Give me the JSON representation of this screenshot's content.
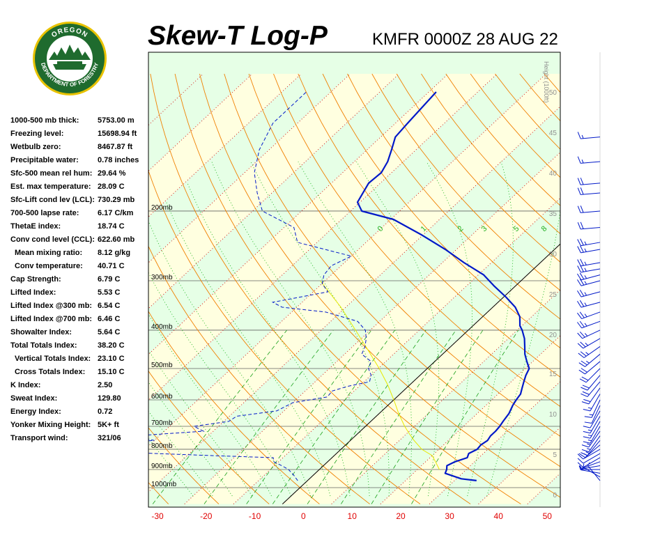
{
  "header": {
    "title": "Skew-T Log-P",
    "station_time": "KMFR 0000Z 28 AUG 22"
  },
  "logo": {
    "top_text": "OREGON",
    "bottom_text": "DEPARTMENT OF FORESTRY",
    "ring_color": "#1f6b2e",
    "rim_color": "#e8c200"
  },
  "indices": [
    {
      "label": "1000-500 mb thick:",
      "value": "5753.00 m",
      "indent": false
    },
    {
      "label": "Freezing level:",
      "value": "15698.94 ft",
      "indent": false
    },
    {
      "label": "Wetbulb zero:",
      "value": "8467.87 ft",
      "indent": false
    },
    {
      "label": "Precipitable water:",
      "value": "0.78 inches",
      "indent": false
    },
    {
      "label": "Sfc-500 mean rel hum:",
      "value": "29.64 %",
      "indent": false
    },
    {
      "label": "Est. max temperature:",
      "value": "28.09 C",
      "indent": false
    },
    {
      "label": "Sfc-Lift cond lev (LCL):",
      "value": "730.29 mb",
      "indent": false
    },
    {
      "label": "700-500 lapse rate:",
      "value": "6.17 C/km",
      "indent": false
    },
    {
      "label": "ThetaE index:",
      "value": "18.74 C",
      "indent": false
    },
    {
      "label": "Conv cond level (CCL):",
      "value": "622.60 mb",
      "indent": false
    },
    {
      "label": "Mean mixing ratio:",
      "value": "8.12 g/kg",
      "indent": true
    },
    {
      "label": "Conv temperature:",
      "value": "40.71 C",
      "indent": true
    },
    {
      "label": "Cap Strength:",
      "value": "6.79 C",
      "indent": false
    },
    {
      "label": "Lifted Index:",
      "value": "5.53 C",
      "indent": false
    },
    {
      "label": "Lifted Index @300 mb:",
      "value": "6.54 C",
      "indent": false
    },
    {
      "label": "Lifted Index @700 mb:",
      "value": "6.46 C",
      "indent": false
    },
    {
      "label": "Showalter Index:",
      "value": "5.64 C",
      "indent": false
    },
    {
      "label": "Total Totals Index:",
      "value": "38.20 C",
      "indent": false
    },
    {
      "label": "Vertical Totals Index:",
      "value": "23.10 C",
      "indent": true
    },
    {
      "label": "Cross Totals Index:",
      "value": "15.10 C",
      "indent": true
    },
    {
      "label": "K Index:",
      "value": "2.50",
      "indent": false
    },
    {
      "label": "Sweat Index:",
      "value": "129.80",
      "indent": false
    },
    {
      "label": "Energy Index:",
      "value": "0.72",
      "indent": false
    },
    {
      "label": "Yonker Mixing Height:",
      "value": "5K+ ft",
      "indent": false
    },
    {
      "label": "Transport wind:",
      "value": "321/06",
      "indent": false
    }
  ],
  "chart_data": {
    "type": "line",
    "subtype": "skew-t log-p",
    "x_tick_labels": [
      "-30",
      "-20",
      "-10",
      "0",
      "10",
      "20",
      "30",
      "40",
      "50"
    ],
    "pressure_labels": [
      "200mb",
      "300mb",
      "400mb",
      "500mb",
      "600mb",
      "700mb",
      "800mb",
      "900mb",
      "1000mb"
    ],
    "height_axis_label": "Height (1000ft)",
    "height_tick_labels": [
      "0",
      "5",
      "10",
      "15",
      "20",
      "25",
      "30",
      "35",
      "40",
      "45",
      "50"
    ],
    "mixing_ratio_labels": [
      "0",
      "1",
      "2",
      "3",
      "5",
      "8"
    ],
    "temperature_profile": {
      "color": "#0018c8",
      "points": [
        [
          960,
          34.5
        ],
        [
          950,
          31.0
        ],
        [
          920,
          26.5
        ],
        [
          900,
          26.0
        ],
        [
          880,
          25.2
        ],
        [
          860,
          26.0
        ],
        [
          840,
          27.6
        ],
        [
          820,
          27.0
        ],
        [
          800,
          27.8
        ],
        [
          780,
          27.6
        ],
        [
          760,
          28.0
        ],
        [
          740,
          27.6
        ],
        [
          720,
          27.6
        ],
        [
          700,
          27.4
        ],
        [
          680,
          27.0
        ],
        [
          650,
          26.5
        ],
        [
          620,
          25.5
        ],
        [
          600,
          25.0
        ],
        [
          580,
          24.6
        ],
        [
          560,
          23.6
        ],
        [
          540,
          22.6
        ],
        [
          520,
          21.6
        ],
        [
          500,
          20.8
        ],
        [
          480,
          18.8
        ],
        [
          460,
          16.8
        ],
        [
          440,
          15.1
        ],
        [
          420,
          13.3
        ],
        [
          400,
          11.0
        ],
        [
          390,
          9.6
        ],
        [
          370,
          7.6
        ],
        [
          350,
          4.6
        ],
        [
          330,
          0.5
        ],
        [
          310,
          -4.2
        ],
        [
          290,
          -8.9
        ],
        [
          270,
          -15.6
        ],
        [
          250,
          -22.3
        ],
        [
          230,
          -30.2
        ],
        [
          210,
          -39.4
        ],
        [
          200,
          -47.7
        ],
        [
          190,
          -50.5
        ],
        [
          170,
          -52.4
        ],
        [
          160,
          -52.1
        ],
        [
          150,
          -53.2
        ],
        [
          140,
          -55.0
        ],
        [
          130,
          -57.0
        ],
        [
          120,
          -57.5
        ],
        [
          100,
          -58.5
        ]
      ]
    },
    "dewpoint_profile": {
      "color": "#0018c8",
      "points": [
        [
          960,
          -2.0
        ],
        [
          930,
          -4.0
        ],
        [
          900,
          -6.3
        ],
        [
          880,
          -8.5
        ],
        [
          860,
          -11.0
        ],
        [
          840,
          -12.0
        ],
        [
          830,
          -25.0
        ],
        [
          815,
          -43.0
        ],
        [
          800,
          -47.0
        ],
        [
          790,
          -40.0
        ],
        [
          770,
          -47.0
        ],
        [
          760,
          -40.0
        ],
        [
          740,
          -45.0
        ],
        [
          720,
          -32.0
        ],
        [
          700,
          -35.0
        ],
        [
          680,
          -29.0
        ],
        [
          660,
          -28.5
        ],
        [
          640,
          -21.5
        ],
        [
          610,
          -20.0
        ],
        [
          590,
          -14.2
        ],
        [
          570,
          -14.5
        ],
        [
          555,
          -12.4
        ],
        [
          540,
          -8.9
        ],
        [
          520,
          -10.0
        ],
        [
          500,
          -12.0
        ],
        [
          480,
          -13.0
        ],
        [
          460,
          -16.5
        ],
        [
          440,
          -17.5
        ],
        [
          420,
          -19.0
        ],
        [
          400,
          -21.0
        ],
        [
          380,
          -24.5
        ],
        [
          360,
          -33.0
        ],
        [
          350,
          -43.0
        ],
        [
          340,
          -46.0
        ],
        [
          320,
          -37.0
        ],
        [
          305,
          -40.0
        ],
        [
          290,
          -41.5
        ],
        [
          275,
          -42.0
        ],
        [
          260,
          -40.0
        ],
        [
          240,
          -54.0
        ],
        [
          220,
          -58.0
        ],
        [
          200,
          -68.0
        ],
        [
          180,
          -73.0
        ],
        [
          160,
          -78.0
        ],
        [
          140,
          -82.0
        ],
        [
          120,
          -85.0
        ],
        [
          100,
          -85.0
        ]
      ]
    },
    "parcel_path": {
      "color": "#e8e800",
      "points": [
        [
          900,
          24.5
        ],
        [
          860,
          22.0
        ],
        [
          830,
          20.0
        ],
        [
          800,
          16.5
        ],
        [
          760,
          13.0
        ],
        [
          730,
          10.5
        ],
        [
          700,
          8.0
        ],
        [
          650,
          4.0
        ],
        [
          600,
          0.0
        ],
        [
          550,
          -4.5
        ],
        [
          500,
          -9.8
        ],
        [
          450,
          -16.0
        ],
        [
          400,
          -23.0
        ],
        [
          350,
          -31.0
        ],
        [
          300,
          -41.0
        ]
      ]
    },
    "wind_barbs": [
      {
        "pressure": 960,
        "direction": 321,
        "speed_kt": 6
      },
      {
        "pressure": 940,
        "direction": 300,
        "speed_kt": 5
      },
      {
        "pressure": 920,
        "direction": 280,
        "speed_kt": 5
      },
      {
        "pressure": 900,
        "direction": 270,
        "speed_kt": 5
      },
      {
        "pressure": 880,
        "direction": 260,
        "speed_kt": 5
      },
      {
        "pressure": 860,
        "direction": 250,
        "speed_kt": 5
      },
      {
        "pressure": 840,
        "direction": 240,
        "speed_kt": 10
      },
      {
        "pressure": 820,
        "direction": 240,
        "speed_kt": 10
      },
      {
        "pressure": 800,
        "direction": 240,
        "speed_kt": 10
      },
      {
        "pressure": 780,
        "direction": 230,
        "speed_kt": 15
      },
      {
        "pressure": 760,
        "direction": 220,
        "speed_kt": 15
      },
      {
        "pressure": 740,
        "direction": 215,
        "speed_kt": 15
      },
      {
        "pressure": 720,
        "direction": 215,
        "speed_kt": 15
      },
      {
        "pressure": 700,
        "direction": 210,
        "speed_kt": 15
      },
      {
        "pressure": 680,
        "direction": 210,
        "speed_kt": 15
      },
      {
        "pressure": 660,
        "direction": 210,
        "speed_kt": 15
      },
      {
        "pressure": 640,
        "direction": 210,
        "speed_kt": 10
      },
      {
        "pressure": 620,
        "direction": 205,
        "speed_kt": 10
      },
      {
        "pressure": 600,
        "direction": 205,
        "speed_kt": 15
      },
      {
        "pressure": 580,
        "direction": 210,
        "speed_kt": 15
      },
      {
        "pressure": 560,
        "direction": 215,
        "speed_kt": 20
      },
      {
        "pressure": 540,
        "direction": 220,
        "speed_kt": 20
      },
      {
        "pressure": 520,
        "direction": 220,
        "speed_kt": 20
      },
      {
        "pressure": 500,
        "direction": 225,
        "speed_kt": 20
      },
      {
        "pressure": 480,
        "direction": 230,
        "speed_kt": 20
      },
      {
        "pressure": 460,
        "direction": 230,
        "speed_kt": 25
      },
      {
        "pressure": 440,
        "direction": 235,
        "speed_kt": 25
      },
      {
        "pressure": 420,
        "direction": 240,
        "speed_kt": 25
      },
      {
        "pressure": 400,
        "direction": 245,
        "speed_kt": 25
      },
      {
        "pressure": 380,
        "direction": 250,
        "speed_kt": 25
      },
      {
        "pressure": 360,
        "direction": 250,
        "speed_kt": 25
      },
      {
        "pressure": 340,
        "direction": 255,
        "speed_kt": 25
      },
      {
        "pressure": 320,
        "direction": 255,
        "speed_kt": 25
      },
      {
        "pressure": 300,
        "direction": 255,
        "speed_kt": 25
      },
      {
        "pressure": 290,
        "direction": 255,
        "speed_kt": 25
      },
      {
        "pressure": 280,
        "direction": 260,
        "speed_kt": 25
      },
      {
        "pressure": 270,
        "direction": 260,
        "speed_kt": 25
      },
      {
        "pressure": 250,
        "direction": 260,
        "speed_kt": 25
      },
      {
        "pressure": 240,
        "direction": 260,
        "speed_kt": 25
      },
      {
        "pressure": 220,
        "direction": 265,
        "speed_kt": 20
      },
      {
        "pressure": 200,
        "direction": 265,
        "speed_kt": 20
      },
      {
        "pressure": 180,
        "direction": 265,
        "speed_kt": 20
      },
      {
        "pressure": 170,
        "direction": 265,
        "speed_kt": 20
      },
      {
        "pressure": 150,
        "direction": 265,
        "speed_kt": 15
      },
      {
        "pressure": 130,
        "direction": 265,
        "speed_kt": 15
      }
    ],
    "colors": {
      "dry_adiabats": "#f08000",
      "moist_adiabats": "#18b418",
      "isotherms": "#d00000",
      "background_warm": "#ffffe0",
      "background_cool": "#e6ffe6",
      "profiles": "#0018c8",
      "parcel": "#e8e800",
      "axis_labels": "#e00000"
    }
  }
}
